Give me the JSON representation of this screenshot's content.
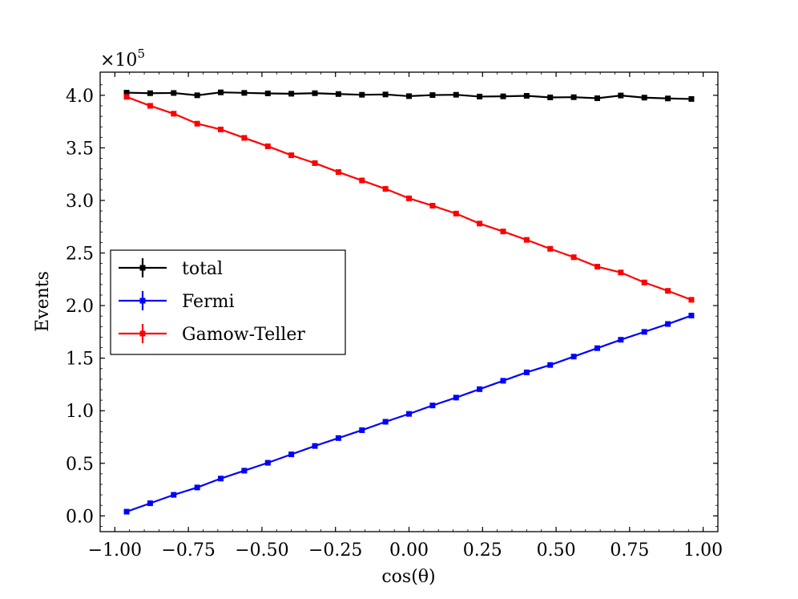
{
  "chart_data": {
    "type": "line",
    "xlabel": "cos(θ)",
    "ylabel": "Events",
    "y_multiplier": {
      "base": "×10",
      "exp": "5"
    },
    "xlim": [
      -1.05,
      1.05
    ],
    "ylim": [
      -0.15,
      4.22
    ],
    "xticks": [
      -1.0,
      -0.75,
      -0.5,
      -0.25,
      0.0,
      0.25,
      0.5,
      0.75,
      1.0
    ],
    "xtick_labels": [
      "−1.00",
      "−0.75",
      "−0.50",
      "−0.25",
      "0.00",
      "0.25",
      "0.50",
      "0.75",
      "1.00"
    ],
    "yticks": [
      0.0,
      0.5,
      1.0,
      1.5,
      2.0,
      2.5,
      3.0,
      3.5,
      4.0
    ],
    "ytick_labels": [
      "0.0",
      "0.5",
      "1.0",
      "1.5",
      "2.0",
      "2.5",
      "3.0",
      "3.5",
      "4.0"
    ],
    "legend_position": "center-left",
    "grid": false,
    "x": [
      -0.96,
      -0.88,
      -0.8,
      -0.72,
      -0.64,
      -0.56,
      -0.48,
      -0.4,
      -0.32,
      -0.24,
      -0.16,
      -0.08,
      0.0,
      0.08,
      0.16,
      0.24,
      0.32,
      0.4,
      0.48,
      0.56,
      0.64,
      0.72,
      0.8,
      0.88,
      0.96
    ],
    "series": [
      {
        "name": "total",
        "color": "#000000",
        "values": [
          4.025,
          4.02,
          4.022,
          4.0,
          4.028,
          4.023,
          4.018,
          4.015,
          4.02,
          4.012,
          4.005,
          4.008,
          3.992,
          4.002,
          4.005,
          3.988,
          3.99,
          3.995,
          3.98,
          3.982,
          3.972,
          3.998,
          3.978,
          3.97,
          3.965
        ]
      },
      {
        "name": "Fermi",
        "color": "#0000ff",
        "values": [
          0.04,
          0.12,
          0.2,
          0.27,
          0.355,
          0.43,
          0.505,
          0.585,
          0.665,
          0.74,
          0.815,
          0.895,
          0.97,
          1.05,
          1.125,
          1.205,
          1.285,
          1.365,
          1.435,
          1.515,
          1.595,
          1.675,
          1.75,
          1.825,
          1.905
        ]
      },
      {
        "name": "Gamow-Teller",
        "color": "#ff0000",
        "values": [
          3.985,
          3.9,
          3.825,
          3.73,
          3.675,
          3.595,
          3.515,
          3.43,
          3.355,
          3.27,
          3.19,
          3.11,
          3.02,
          2.95,
          2.875,
          2.78,
          2.705,
          2.625,
          2.54,
          2.46,
          2.37,
          2.315,
          2.22,
          2.14,
          2.055
        ]
      }
    ]
  }
}
